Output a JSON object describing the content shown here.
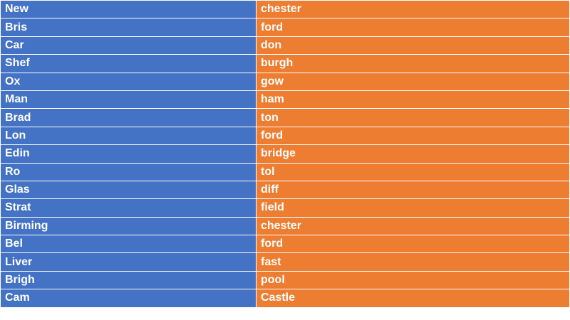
{
  "colors": {
    "left": "#4472C4",
    "right": "#ED7D31"
  },
  "rows": [
    {
      "left": "New",
      "right": "chester"
    },
    {
      "left": "Bris",
      "right": "ford"
    },
    {
      "left": "Car",
      "right": "don"
    },
    {
      "left": "Shef",
      "right": "burgh"
    },
    {
      "left": "Ox",
      "right": "gow"
    },
    {
      "left": "Man",
      "right": "ham"
    },
    {
      "left": "Brad",
      "right": "ton"
    },
    {
      "left": "Lon",
      "right": "ford"
    },
    {
      "left": "Edin",
      "right": "bridge"
    },
    {
      "left": "Ro",
      "right": "tol"
    },
    {
      "left": "Glas",
      "right": "diff"
    },
    {
      "left": "Strat",
      "right": "field"
    },
    {
      "left": "Birming",
      "right": "chester"
    },
    {
      "left": "Bel",
      "right": "ford"
    },
    {
      "left": "Liver",
      "right": "fast"
    },
    {
      "left": "Brigh",
      "right": "pool"
    },
    {
      "left": "Cam",
      "right": "Castle"
    }
  ]
}
